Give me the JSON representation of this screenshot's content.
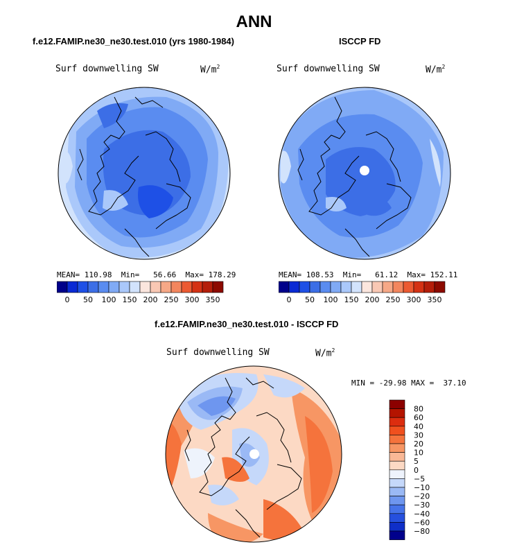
{
  "page_title": "ANN",
  "panels": [
    {
      "model": "f.e12.FAMIP.ne30_ne30.test.010 (yrs 1980-1984)",
      "variable": "Surf downwelling SW",
      "units_base": "W/m",
      "units_exp": "2",
      "mean_label": "MEAN=",
      "mean": "110.98",
      "min_label": "Min=",
      "min": "56.66",
      "max_label": "Max=",
      "max": "178.29"
    },
    {
      "model": "ISCCP FD",
      "variable": "Surf downwelling SW",
      "units_base": "W/m",
      "units_exp": "2",
      "mean_label": "MEAN=",
      "mean": "108.53",
      "min_label": "Min=",
      "min": "61.12",
      "max_label": "Max=",
      "max": "152.11"
    }
  ],
  "diff": {
    "title": "f.e12.FAMIP.ne30_ne30.test.010 - ISCCP FD",
    "variable": "Surf downwelling SW",
    "units_base": "W/m",
    "units_exp": "2",
    "min_label": "MIN =",
    "min": "-29.98",
    "max_label": "MAX =",
    "max": "37.10"
  },
  "chart_data": [
    {
      "type": "polar-contour",
      "title": "f.e12.FAMIP.ne30_ne30.test.010 (yrs 1980-1984)",
      "units": "W/m2",
      "colorbar_ticks": [
        "0",
        "50",
        "100",
        "150",
        "200",
        "250",
        "300",
        "350"
      ],
      "colorbar_colors": [
        "#00008a",
        "#0a2ad4",
        "#1e50e6",
        "#3c6ee6",
        "#5a8cf0",
        "#80aaf5",
        "#aac8fa",
        "#d2e3fc",
        "#fbe6de",
        "#f9c8b4",
        "#f6a887",
        "#f3865e",
        "#ec5a32",
        "#d43214",
        "#b41e0a",
        "#8c0a00"
      ],
      "mean": 110.98,
      "min": 56.66,
      "max": 178.29
    },
    {
      "type": "polar-contour",
      "title": "ISCCP FD",
      "units": "W/m2",
      "colorbar_ticks": [
        "0",
        "50",
        "100",
        "150",
        "200",
        "250",
        "300",
        "350"
      ],
      "colorbar_colors": [
        "#00008a",
        "#0a2ad4",
        "#1e50e6",
        "#3c6ee6",
        "#5a8cf0",
        "#80aaf5",
        "#aac8fa",
        "#d2e3fc",
        "#fbe6de",
        "#f9c8b4",
        "#f6a887",
        "#f3865e",
        "#ec5a32",
        "#d43214",
        "#b41e0a",
        "#8c0a00"
      ],
      "mean": 108.53,
      "min": 61.12,
      "max": 152.11
    },
    {
      "type": "polar-contour-difference",
      "title": "f.e12.FAMIP.ne30_ne30.test.010 - ISCCP FD",
      "units": "W/m2",
      "colorbar_ticks": [
        "80",
        "60",
        "40",
        "30",
        "20",
        "10",
        "5",
        "0",
        "-5",
        "-10",
        "-20",
        "-30",
        "-40",
        "-60",
        "-80"
      ],
      "colorbar_colors": [
        "#8c0000",
        "#b41400",
        "#dc2d0f",
        "#f0501e",
        "#f5733c",
        "#f79664",
        "#f9b896",
        "#fcd9c4",
        "#eef3fc",
        "#c5d8fa",
        "#9ab9f5",
        "#6e96ef",
        "#4673e9",
        "#2650de",
        "#0f2fc8",
        "#00008c"
      ],
      "min": -29.98,
      "max": 37.1
    }
  ]
}
